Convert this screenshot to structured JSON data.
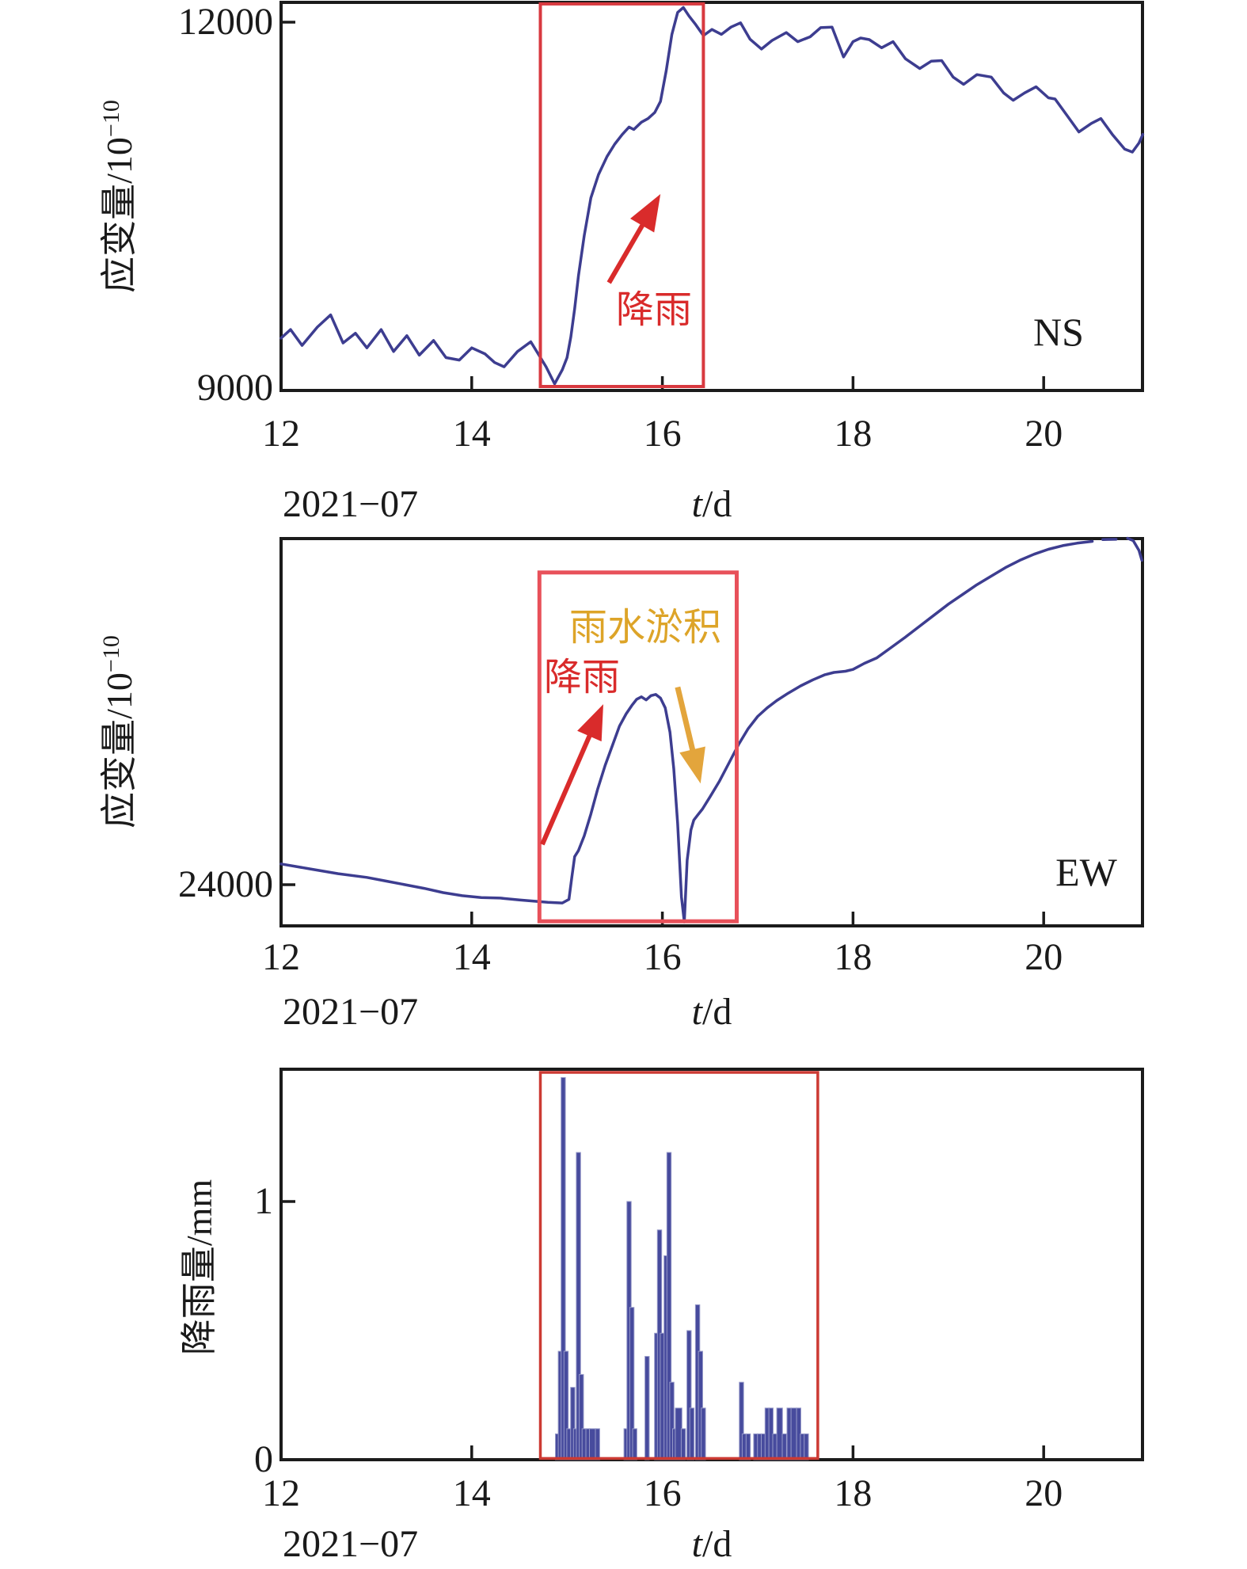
{
  "labels": {
    "date": "2021−07",
    "t": "t",
    "slash_d": "/d"
  },
  "chart_data": [
    {
      "type": "line",
      "direction_label": "NS",
      "ylabel_main": "应变量/10",
      "ylabel_sup": "−10",
      "xlabel": "t/d",
      "x_sub_label": "2021−07",
      "xlim": [
        12,
        21.04
      ],
      "ylim": [
        8980,
        12160
      ],
      "grid": false,
      "x_ticks": [
        {
          "label": "12",
          "value": 12
        },
        {
          "label": "14",
          "value": 14
        },
        {
          "label": "16",
          "value": 16
        },
        {
          "label": "18",
          "value": 18
        },
        {
          "label": "20",
          "value": 20
        }
      ],
      "y_ticks": [
        {
          "label": "12000",
          "value": 12000
        },
        {
          "label": "9000",
          "value": 9000
        }
      ],
      "line_color": "#3d3d90",
      "highlight_box": {
        "day_start": 14.72,
        "day_end": 16.43,
        "v_bottom": 9013,
        "v_top": 12150,
        "color": "#d8393f",
        "stroke": 4
      },
      "annotations": [
        {
          "text": "降雨",
          "color": "#d92b2b"
        }
      ],
      "arrows": [
        {
          "from_day": 15.44,
          "from_v": 9864,
          "to_day": 15.98,
          "to_v": 10591,
          "color": "#d92b2b",
          "shaft": 6,
          "head": 46
        }
      ],
      "series": [
        [
          [
            12,
            9410
          ],
          [
            12.1,
            9480
          ],
          [
            12.22,
            9350
          ],
          [
            12.38,
            9500
          ],
          [
            12.52,
            9600
          ],
          [
            12.65,
            9370
          ],
          [
            12.78,
            9450
          ],
          [
            12.9,
            9330
          ],
          [
            13.05,
            9480
          ],
          [
            13.18,
            9300
          ],
          [
            13.32,
            9430
          ],
          [
            13.45,
            9270
          ],
          [
            13.6,
            9390
          ],
          [
            13.73,
            9250
          ],
          [
            13.87,
            9230
          ],
          [
            14,
            9330
          ],
          [
            14.14,
            9280
          ],
          [
            14.24,
            9210
          ],
          [
            14.34,
            9175
          ],
          [
            14.48,
            9300
          ],
          [
            14.62,
            9380
          ],
          [
            14.78,
            9175
          ],
          [
            14.87,
            9035
          ],
          [
            14.95,
            9150
          ],
          [
            15,
            9250
          ],
          [
            15.04,
            9420
          ],
          [
            15.08,
            9650
          ],
          [
            15.12,
            9920
          ],
          [
            15.18,
            10250
          ],
          [
            15.25,
            10560
          ],
          [
            15.33,
            10750
          ],
          [
            15.42,
            10900
          ],
          [
            15.5,
            11000
          ],
          [
            15.58,
            11080
          ],
          [
            15.65,
            11140
          ],
          [
            15.7,
            11120
          ],
          [
            15.78,
            11180
          ],
          [
            15.85,
            11210
          ],
          [
            15.92,
            11260
          ],
          [
            15.98,
            11350
          ],
          [
            16.04,
            11600
          ],
          [
            16.1,
            11900
          ],
          [
            16.16,
            12080
          ],
          [
            16.22,
            12120
          ],
          [
            16.28,
            12050
          ],
          [
            16.35,
            11980
          ],
          [
            16.43,
            11890
          ],
          [
            16.52,
            11940
          ],
          [
            16.62,
            11900
          ],
          [
            16.72,
            11960
          ],
          [
            16.82,
            11995
          ],
          [
            16.92,
            11860
          ],
          [
            17.04,
            11780
          ],
          [
            17.15,
            11850
          ],
          [
            17.3,
            11915
          ],
          [
            17.42,
            11840
          ],
          [
            17.55,
            11880
          ],
          [
            17.66,
            11955
          ],
          [
            17.78,
            11960
          ],
          [
            17.9,
            11715
          ],
          [
            18,
            11840
          ],
          [
            18.08,
            11870
          ],
          [
            18.17,
            11857
          ],
          [
            18.3,
            11790
          ],
          [
            18.42,
            11840
          ],
          [
            18.55,
            11700
          ],
          [
            18.7,
            11620
          ],
          [
            18.82,
            11680
          ],
          [
            18.93,
            11685
          ],
          [
            19.05,
            11550
          ],
          [
            19.16,
            11490
          ],
          [
            19.3,
            11570
          ],
          [
            19.45,
            11550
          ],
          [
            19.58,
            11420
          ],
          [
            19.68,
            11360
          ],
          [
            19.8,
            11420
          ],
          [
            19.92,
            11470
          ],
          [
            20.05,
            11380
          ],
          [
            20.12,
            11370
          ],
          [
            20.25,
            11230
          ],
          [
            20.37,
            11100
          ],
          [
            20.5,
            11170
          ],
          [
            20.6,
            11210
          ],
          [
            20.72,
            11080
          ],
          [
            20.85,
            10960
          ],
          [
            20.93,
            10935
          ],
          [
            21,
            11010
          ],
          [
            21.04,
            11080
          ]
        ]
      ]
    },
    {
      "type": "line",
      "direction_label": "EW",
      "ylabel_main": "应变量/10",
      "ylabel_sup": "−10",
      "xlabel": "t/d",
      "x_sub_label": "2021−07",
      "xlim": [
        12,
        21.04
      ],
      "ylim": [
        23662,
        26838
      ],
      "grid": false,
      "x_ticks": [
        {
          "label": "12",
          "value": 12
        },
        {
          "label": "14",
          "value": 14
        },
        {
          "label": "16",
          "value": 16
        },
        {
          "label": "18",
          "value": 18
        },
        {
          "label": "20",
          "value": 20
        }
      ],
      "y_ticks": [
        {
          "label": "24000",
          "value": 24000
        }
      ],
      "line_color": "#3d3d90",
      "highlight_box": {
        "day_start": 14.71,
        "day_end": 16.78,
        "v_bottom": 23700,
        "v_top": 26560,
        "color": "#e8515a",
        "stroke": 5
      },
      "annotations": [
        {
          "text": "雨水淤积",
          "color": "#dda428"
        },
        {
          "text": "降雨",
          "color": "#d92b2b"
        }
      ],
      "arrows": [
        {
          "from_day": 14.74,
          "from_v": 24330,
          "to_day": 15.38,
          "to_v": 25480,
          "color": "#d92b2b",
          "shaft": 6,
          "head": 44
        },
        {
          "from_day": 16.16,
          "from_v": 25620,
          "to_day": 16.4,
          "to_v": 24830,
          "color": "#e3a53c",
          "shaft": 7,
          "head": 44
        }
      ],
      "series": [
        [
          [
            12,
            24170
          ],
          [
            12.3,
            24130
          ],
          [
            12.6,
            24090
          ],
          [
            12.9,
            24060
          ],
          [
            13.1,
            24030
          ],
          [
            13.3,
            24000
          ],
          [
            13.5,
            23970
          ],
          [
            13.7,
            23935
          ],
          [
            13.9,
            23910
          ],
          [
            14.1,
            23895
          ],
          [
            14.3,
            23890
          ],
          [
            14.5,
            23875
          ],
          [
            14.65,
            23865
          ],
          [
            14.8,
            23855
          ],
          [
            14.95,
            23850
          ],
          [
            15.02,
            23880
          ],
          [
            15.05,
            24060
          ],
          [
            15.08,
            24230
          ],
          [
            15.12,
            24280
          ],
          [
            15.18,
            24400
          ],
          [
            15.25,
            24580
          ],
          [
            15.32,
            24780
          ],
          [
            15.4,
            24980
          ],
          [
            15.48,
            25150
          ],
          [
            15.55,
            25300
          ],
          [
            15.62,
            25400
          ],
          [
            15.68,
            25470
          ],
          [
            15.73,
            25520
          ],
          [
            15.78,
            25540
          ],
          [
            15.83,
            25515
          ],
          [
            15.88,
            25550
          ],
          [
            15.93,
            25560
          ],
          [
            15.98,
            25530
          ],
          [
            16.03,
            25450
          ],
          [
            16.08,
            25250
          ],
          [
            16.12,
            24950
          ],
          [
            16.16,
            24500
          ],
          [
            16.2,
            23900
          ],
          [
            16.23,
            23695
          ],
          [
            16.26,
            24200
          ],
          [
            16.3,
            24450
          ],
          [
            16.33,
            24530
          ],
          [
            16.37,
            24570
          ],
          [
            16.42,
            24620
          ],
          [
            16.5,
            24720
          ],
          [
            16.6,
            24850
          ],
          [
            16.7,
            25000
          ],
          [
            16.8,
            25150
          ],
          [
            16.9,
            25280
          ],
          [
            17,
            25380
          ],
          [
            17.1,
            25450
          ],
          [
            17.2,
            25510
          ],
          [
            17.32,
            25570
          ],
          [
            17.45,
            25630
          ],
          [
            17.58,
            25680
          ],
          [
            17.7,
            25720
          ],
          [
            17.8,
            25740
          ],
          [
            17.92,
            25750
          ],
          [
            18,
            25765
          ],
          [
            18.12,
            25815
          ],
          [
            18.25,
            25860
          ],
          [
            18.4,
            25945
          ],
          [
            18.55,
            26030
          ],
          [
            18.7,
            26120
          ],
          [
            18.85,
            26210
          ],
          [
            19,
            26300
          ],
          [
            19.15,
            26380
          ],
          [
            19.3,
            26460
          ],
          [
            19.45,
            26530
          ],
          [
            19.6,
            26600
          ],
          [
            19.75,
            26660
          ],
          [
            19.9,
            26710
          ],
          [
            20.05,
            26750
          ],
          [
            20.2,
            26780
          ],
          [
            20.35,
            26800
          ],
          [
            20.51,
            26815
          ]
        ],
        [
          [
            20.62,
            26830
          ],
          [
            20.76,
            26832
          ]
        ],
        [
          [
            20.88,
            26840
          ],
          [
            20.94,
            26820
          ],
          [
            21,
            26740
          ],
          [
            21.03,
            26660
          ]
        ]
      ]
    },
    {
      "type": "bar",
      "direction_label": "",
      "ylabel_main": "降雨量/mm",
      "ylabel_sup": "",
      "xlabel": "t/d",
      "x_sub_label": "2021−07",
      "xlim": [
        12,
        21.04
      ],
      "ylim": [
        0,
        1.51
      ],
      "grid": false,
      "x_ticks": [
        {
          "label": "12",
          "value": 12
        },
        {
          "label": "14",
          "value": 14
        },
        {
          "label": "16",
          "value": 16
        },
        {
          "label": "18",
          "value": 18
        },
        {
          "label": "20",
          "value": 20
        }
      ],
      "y_ticks": [
        {
          "label": "1",
          "value": 1
        },
        {
          "label": "0",
          "value": 0
        }
      ],
      "bar_color": "#474b9d",
      "bar_edge_color": "#9598c8",
      "highlight_box": {
        "day_start": 14.72,
        "day_end": 17.63,
        "v_bottom": 0.005,
        "v_top": 1.5,
        "color": "#cc3a33",
        "stroke": 3.5
      },
      "annotations": [],
      "arrows": [],
      "bars": [
        [
          14.9,
          0.1
        ],
        [
          14.93,
          0.42
        ],
        [
          14.96,
          1.48
        ],
        [
          14.99,
          0.42
        ],
        [
          15.02,
          0.12
        ],
        [
          15.06,
          0.28
        ],
        [
          15.09,
          0.12
        ],
        [
          15.12,
          1.19
        ],
        [
          15.15,
          0.33
        ],
        [
          15.18,
          0.12
        ],
        [
          15.22,
          0.12
        ],
        [
          15.27,
          0.12,
          0.07
        ],
        [
          15.32,
          0.12
        ],
        [
          15.62,
          0.12
        ],
        [
          15.65,
          1.0
        ],
        [
          15.68,
          0.59
        ],
        [
          15.71,
          0.12
        ],
        [
          15.84,
          0.4
        ],
        [
          15.94,
          0.49
        ],
        [
          15.97,
          0.89
        ],
        [
          16.0,
          0.49
        ],
        [
          16.04,
          0.79
        ],
        [
          16.07,
          1.19
        ],
        [
          16.1,
          0.3
        ],
        [
          16.13,
          0.12
        ],
        [
          16.17,
          0.2,
          0.07
        ],
        [
          16.22,
          0.12
        ],
        [
          16.28,
          0.5
        ],
        [
          16.31,
          0.2
        ],
        [
          16.37,
          0.6
        ],
        [
          16.4,
          0.42
        ],
        [
          16.43,
          0.2
        ],
        [
          16.83,
          0.3
        ],
        [
          16.86,
          0.1
        ],
        [
          16.9,
          0.1
        ],
        [
          16.98,
          0.1
        ],
        [
          17.02,
          0.1
        ],
        [
          17.06,
          0.1
        ],
        [
          17.1,
          0.2
        ],
        [
          17.14,
          0.2
        ],
        [
          17.18,
          0.1
        ],
        [
          17.23,
          0.2,
          0.06
        ],
        [
          17.28,
          0.1
        ],
        [
          17.33,
          0.2
        ],
        [
          17.38,
          0.2,
          0.06
        ],
        [
          17.43,
          0.2
        ],
        [
          17.47,
          0.1
        ],
        [
          17.51,
          0.1
        ]
      ]
    }
  ]
}
